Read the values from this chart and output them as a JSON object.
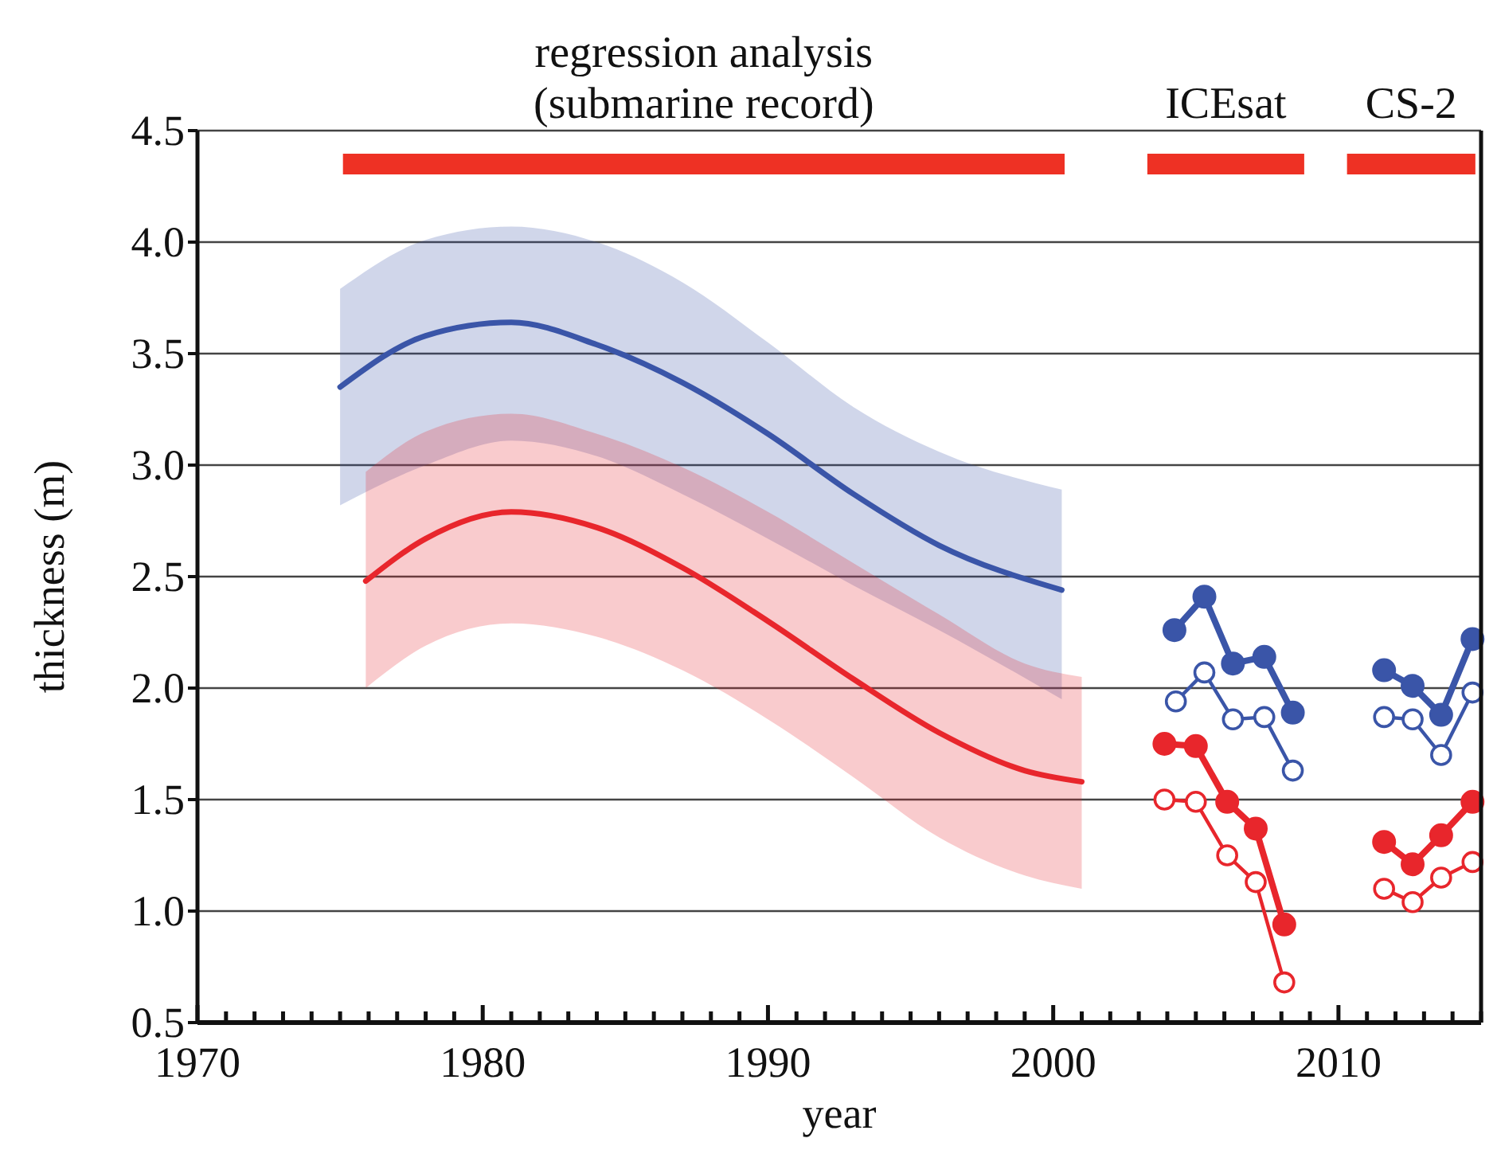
{
  "chart_data": {
    "type": "line",
    "xlabel": "year",
    "ylabel": "thickness (m)",
    "xlim": [
      1970,
      2015
    ],
    "ylim": [
      0.5,
      4.5
    ],
    "xticks": [
      1970,
      {
        "value": 1971,
        "label": null
      },
      {
        "value": 1972,
        "label": null
      },
      {
        "value": 1973,
        "label": null
      },
      {
        "value": 1974,
        "label": null
      },
      {
        "value": 1975,
        "label": null
      },
      {
        "value": 1976,
        "label": null
      },
      {
        "value": 1977,
        "label": null
      },
      {
        "value": 1978,
        "label": null
      },
      {
        "value": 1979,
        "label": null
      },
      1980,
      {
        "value": 1981,
        "label": null
      },
      {
        "value": 1982,
        "label": null
      },
      {
        "value": 1983,
        "label": null
      },
      {
        "value": 1984,
        "label": null
      },
      {
        "value": 1985,
        "label": null
      },
      {
        "value": 1986,
        "label": null
      },
      {
        "value": 1987,
        "label": null
      },
      {
        "value": 1988,
        "label": null
      },
      {
        "value": 1989,
        "label": null
      },
      1990,
      {
        "value": 1991,
        "label": null
      },
      {
        "value": 1992,
        "label": null
      },
      {
        "value": 1993,
        "label": null
      },
      {
        "value": 1994,
        "label": null
      },
      {
        "value": 1995,
        "label": null
      },
      {
        "value": 1996,
        "label": null
      },
      {
        "value": 1997,
        "label": null
      },
      {
        "value": 1998,
        "label": null
      },
      {
        "value": 1999,
        "label": null
      },
      2000,
      {
        "value": 2001,
        "label": null
      },
      {
        "value": 2002,
        "label": null
      },
      {
        "value": 2003,
        "label": null
      },
      {
        "value": 2004,
        "label": null
      },
      {
        "value": 2005,
        "label": null
      },
      {
        "value": 2006,
        "label": null
      },
      {
        "value": 2007,
        "label": null
      },
      {
        "value": 2008,
        "label": null
      },
      {
        "value": 2009,
        "label": null
      },
      2010,
      {
        "value": 2011,
        "label": null
      },
      {
        "value": 2012,
        "label": null
      },
      {
        "value": 2013,
        "label": null
      },
      {
        "value": 2014,
        "label": null
      },
      {
        "value": 2015,
        "label": null
      }
    ],
    "yticks": [
      0.5,
      {
        "value": 1,
        "label": "1.0"
      },
      1.5,
      {
        "value": 2,
        "label": "2.0"
      },
      2.5,
      {
        "value": 3,
        "label": "3.0"
      },
      3.5,
      {
        "value": 4,
        "label": "4.0"
      },
      4.5
    ],
    "grid": "y",
    "line_style": "solid",
    "annotations": [
      {
        "text": "regression analysis\n(submarine record)",
        "x": 1987.75,
        "y": 4.35
      },
      {
        "text": "ICEsat",
        "x": 2006.05,
        "y": 4.35
      },
      {
        "text": "CS-2",
        "x": 2012.55,
        "y": 4.35
      }
    ],
    "series": [
      {
        "color": "#ee3124",
        "marker": "none",
        "x": [
          1975.1,
          2000.4
        ],
        "values": [
          4.35,
          4.35
        ]
      },
      {
        "color": "#ee3124",
        "marker": "none",
        "x": [
          2003.3,
          2008.8
        ],
        "values": [
          4.35,
          4.35
        ]
      },
      {
        "color": "#ee3124",
        "marker": "none",
        "x": [
          2010.3,
          2014.8
        ],
        "values": [
          4.35,
          4.35
        ]
      },
      {
        "color": "#3a55a8",
        "marker": "none",
        "x": [
          1975,
          1978,
          1981,
          1984,
          1987,
          1990,
          1993,
          1996,
          2000.3
        ],
        "values": [
          3.35,
          3.58,
          3.64,
          3.54,
          3.37,
          3.14,
          2.87,
          2.64,
          2.44
        ],
        "lower": [
          2.82,
          3.0,
          3.11,
          3.04,
          2.87,
          2.67,
          2.46,
          2.26,
          1.95
        ],
        "upper": [
          3.79,
          4.01,
          4.07,
          4.0,
          3.82,
          3.55,
          3.26,
          3.06,
          2.89
        ]
      },
      {
        "color": "#e8262c",
        "marker": "none",
        "x": [
          1975.9,
          1978,
          1981,
          1984,
          1987,
          1990,
          1993,
          1996,
          1999,
          2001
        ],
        "values": [
          2.48,
          2.67,
          2.79,
          2.72,
          2.54,
          2.3,
          2.04,
          1.8,
          1.63,
          1.58
        ],
        "lower": [
          2.0,
          2.19,
          2.29,
          2.23,
          2.08,
          1.86,
          1.6,
          1.33,
          1.16,
          1.1
        ],
        "upper": [
          2.97,
          3.15,
          3.23,
          3.14,
          2.99,
          2.79,
          2.56,
          2.33,
          2.11,
          2.05
        ]
      },
      {
        "color": "#3a55a8",
        "marker": "circle",
        "x": [
          2004.25,
          2005.3,
          2006.3,
          2007.4,
          2008.4
        ],
        "values": [
          2.26,
          2.41,
          2.11,
          2.14,
          1.89
        ]
      },
      {
        "color": "#3a55a8",
        "marker": "circle-open",
        "x": [
          2004.3,
          2005.3,
          2006.3,
          2007.4,
          2008.4
        ],
        "values": [
          1.94,
          2.07,
          1.86,
          1.87,
          1.63
        ]
      },
      {
        "color": "#e8262c",
        "marker": "circle",
        "x": [
          2003.9,
          2005.0,
          2006.1,
          2007.1,
          2008.1
        ],
        "values": [
          1.75,
          1.74,
          1.49,
          1.37,
          0.94
        ]
      },
      {
        "color": "#e8262c",
        "marker": "circle-open",
        "x": [
          2003.9,
          2005.0,
          2006.1,
          2007.1,
          2008.1
        ],
        "values": [
          1.5,
          1.49,
          1.25,
          1.13,
          0.68
        ]
      },
      {
        "color": "#3a55a8",
        "marker": "circle",
        "x": [
          2011.6,
          2012.6,
          2013.6,
          2014.7
        ],
        "values": [
          2.08,
          2.01,
          1.88,
          2.22
        ]
      },
      {
        "color": "#3a55a8",
        "marker": "circle-open",
        "x": [
          2011.6,
          2012.6,
          2013.6,
          2014.7
        ],
        "values": [
          1.87,
          1.86,
          1.7,
          1.98
        ]
      },
      {
        "color": "#e8262c",
        "marker": "circle",
        "x": [
          2011.6,
          2012.6,
          2013.6,
          2014.7
        ],
        "values": [
          1.31,
          1.21,
          1.34,
          1.49
        ]
      },
      {
        "color": "#e8262c",
        "marker": "circle-open",
        "x": [
          2011.6,
          2012.6,
          2013.6,
          2014.7
        ],
        "values": [
          1.1,
          1.04,
          1.15,
          1.22
        ]
      }
    ]
  }
}
